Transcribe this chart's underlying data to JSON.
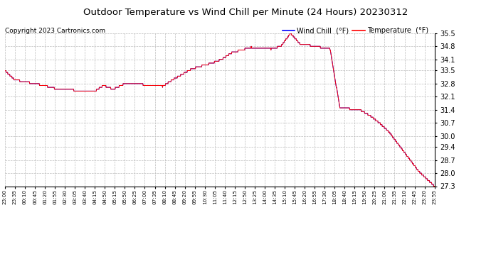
{
  "title": "Outdoor Temperature vs Wind Chill per Minute (24 Hours) 20230312",
  "copyright": "Copyright 2023 Cartronics.com",
  "legend_wind_chill": "Wind Chill  (°F)",
  "legend_temperature": "Temperature  (°F)",
  "wind_chill_color": "blue",
  "temperature_color": "red",
  "background_color": "#ffffff",
  "grid_color": "#bbbbbb",
  "ylim_min": 27.3,
  "ylim_max": 35.5,
  "yticks": [
    27.3,
    28.0,
    28.7,
    29.4,
    30.0,
    30.7,
    31.4,
    32.1,
    32.8,
    33.5,
    34.1,
    34.8,
    35.5
  ],
  "x_labels": [
    "23:00",
    "23:35",
    "00:10",
    "00:45",
    "01:20",
    "01:55",
    "02:30",
    "03:05",
    "03:40",
    "04:15",
    "04:50",
    "05:15",
    "05:50",
    "06:25",
    "07:00",
    "07:35",
    "08:10",
    "08:45",
    "09:20",
    "09:55",
    "10:30",
    "11:05",
    "11:40",
    "12:15",
    "12:50",
    "13:25",
    "14:00",
    "14:35",
    "15:10",
    "15:45",
    "16:20",
    "16:55",
    "17:30",
    "18:05",
    "18:40",
    "19:15",
    "19:50",
    "20:25",
    "21:00",
    "21:35",
    "22:10",
    "22:45",
    "23:20",
    "23:55"
  ],
  "temp_profile_x": [
    0,
    33,
    66,
    99,
    132,
    165,
    198,
    231,
    264,
    297,
    330,
    363,
    396,
    429,
    462,
    495,
    528,
    561,
    594,
    627,
    660,
    693,
    726,
    759,
    792,
    825,
    858,
    891,
    924,
    957,
    990,
    1023,
    1056,
    1089,
    1122,
    1155,
    1188,
    1221,
    1254,
    1287,
    1320,
    1353,
    1386,
    1439
  ],
  "temp_profile_y": [
    33.5,
    33.0,
    32.9,
    32.8,
    32.7,
    32.55,
    32.5,
    32.45,
    32.4,
    32.35,
    32.7,
    32.5,
    32.75,
    32.8,
    32.75,
    32.7,
    32.65,
    33.0,
    33.3,
    33.6,
    33.75,
    33.9,
    34.1,
    34.45,
    34.6,
    34.75,
    34.7,
    34.65,
    34.8,
    35.5,
    34.9,
    34.85,
    34.75,
    34.65,
    31.5,
    31.45,
    31.4,
    31.1,
    30.7,
    30.2,
    29.5,
    28.8,
    28.1,
    27.3
  ]
}
